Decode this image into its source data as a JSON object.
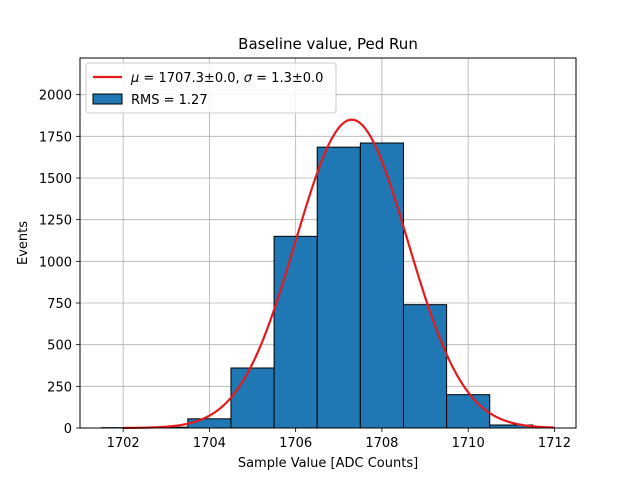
{
  "chart_data": {
    "type": "bar",
    "title": "Baseline value, Ped Run",
    "xlabel": "Sample Value [ADC Counts]",
    "ylabel": "Events",
    "xlim": [
      1701.0,
      1712.5
    ],
    "ylim": [
      0,
      2220
    ],
    "xticks": [
      1702,
      1704,
      1706,
      1708,
      1710,
      1712
    ],
    "yticks": [
      0,
      250,
      500,
      750,
      1000,
      1250,
      1500,
      1750,
      2000
    ],
    "grid": true,
    "legend_placement": "top-left",
    "histogram": {
      "name": "RMS = 1.27",
      "color": "#1f77b4",
      "edgecolor": "#000000",
      "bin_edges": [
        1701.5,
        1702.5,
        1703.5,
        1704.5,
        1705.5,
        1706.5,
        1707.5,
        1708.5,
        1709.5,
        1710.5,
        1711.5
      ],
      "counts": [
        2,
        5,
        55,
        360,
        1150,
        1685,
        1710,
        740,
        200,
        18
      ]
    },
    "fit": {
      "name": "μ = 1707.3±0.0, σ = 1.3±0.0",
      "label_mu": "μ",
      "label_mid": " = 1707.3±0.0, ",
      "label_sigma": "σ",
      "label_end": " = 1.3±0.0",
      "type": "gaussian",
      "mu": 1707.3,
      "sigma": 1.3,
      "amplitude": 1850,
      "x_range": [
        1702,
        1712
      ],
      "color": "#e41a1c"
    }
  }
}
